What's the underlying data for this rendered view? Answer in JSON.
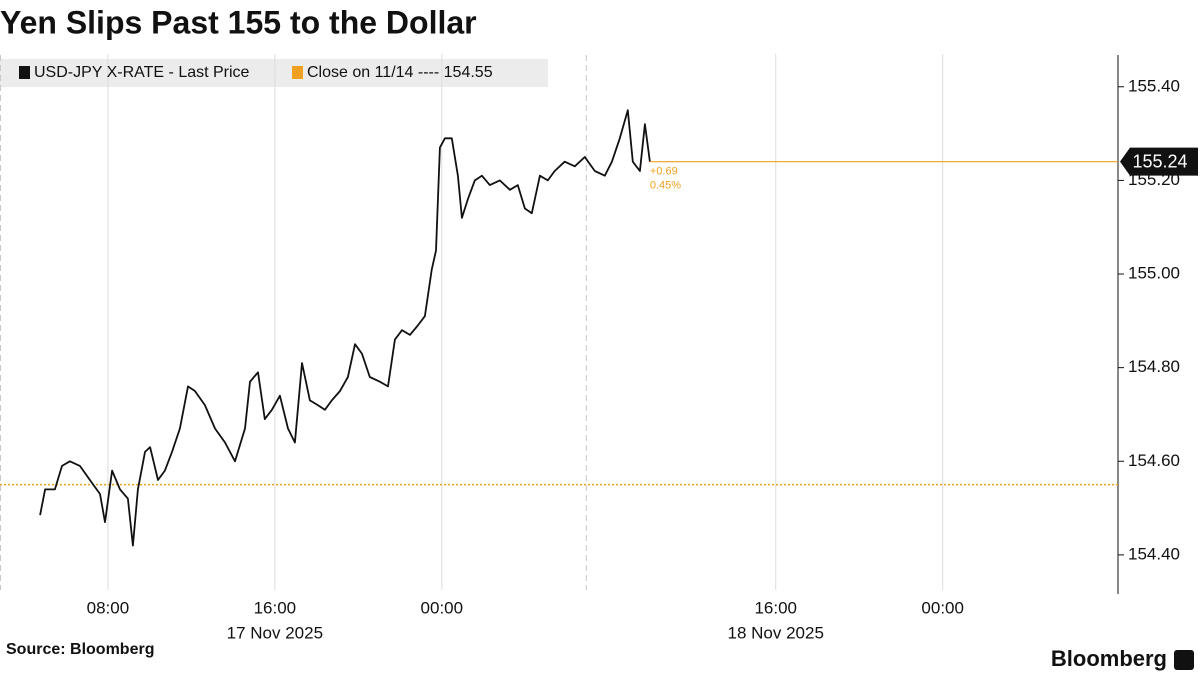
{
  "chart_data": {
    "type": "line",
    "title": "Yen Slips Past 155 to the Dollar",
    "source": "Source: Bloomberg",
    "brand": "Bloomberg",
    "series": [
      {
        "name": "USD-JPY X-RATE - Last Price",
        "color": "#111111",
        "x": [
          4.75,
          4.99,
          5.46,
          5.8,
          6.18,
          6.66,
          7.14,
          7.62,
          7.86,
          8.2,
          8.58,
          8.96,
          9.2,
          9.44,
          9.78,
          10.02,
          10.4,
          10.73,
          11.07,
          11.45,
          11.84,
          12.17,
          12.65,
          13.13,
          13.61,
          14.09,
          14.57,
          14.81,
          15.19,
          15.52,
          15.86,
          16.24,
          16.63,
          16.96,
          17.3,
          17.68,
          18.06,
          18.4,
          18.73,
          19.12,
          19.5,
          19.84,
          20.17,
          20.55,
          21.03,
          21.42,
          21.75,
          22.09,
          22.47,
          22.85,
          23.19,
          23.52,
          23.72,
          23.91,
          24.15,
          24.48,
          24.77,
          24.96,
          25.25,
          25.58,
          25.92,
          26.3,
          26.78,
          27.26,
          27.64,
          27.98,
          28.31,
          28.7,
          29.08,
          29.41,
          29.89,
          30.37,
          30.85,
          31.33,
          31.81,
          32.15,
          32.53,
          32.91,
          33.15,
          33.49,
          33.73,
          33.97
        ],
        "values": [
          154.485,
          154.54,
          154.54,
          154.59,
          154.6,
          154.59,
          154.56,
          154.53,
          154.47,
          154.58,
          154.54,
          154.52,
          154.42,
          154.54,
          154.62,
          154.63,
          154.56,
          154.58,
          154.62,
          154.67,
          154.76,
          154.75,
          154.72,
          154.67,
          154.64,
          154.6,
          154.67,
          154.77,
          154.79,
          154.69,
          154.71,
          154.74,
          154.67,
          154.64,
          154.81,
          154.73,
          154.72,
          154.71,
          154.73,
          154.75,
          154.78,
          154.85,
          154.83,
          154.78,
          154.77,
          154.76,
          154.86,
          154.88,
          154.87,
          154.89,
          154.91,
          155.01,
          155.05,
          155.27,
          155.29,
          155.29,
          155.21,
          155.12,
          155.16,
          155.2,
          155.21,
          155.19,
          155.2,
          155.18,
          155.19,
          155.14,
          155.13,
          155.21,
          155.2,
          155.22,
          155.24,
          155.23,
          155.25,
          155.22,
          155.21,
          155.24,
          155.29,
          155.35,
          155.24,
          155.22,
          155.32,
          155.24
        ]
      }
    ],
    "reference": {
      "name": "Close on 11/14 ---- 154.55",
      "value": 154.55,
      "color": "#f0a020"
    },
    "last_price": 155.24,
    "change": "+0.69",
    "change_pct": "0.45%",
    "session_breaks": [
      2.83,
      30.9
    ],
    "xlim": [
      2.83,
      56.4
    ],
    "xticks": [
      {
        "value": 8,
        "label": "08:00"
      },
      {
        "value": 16,
        "label": "16:00"
      },
      {
        "value": 24,
        "label": "00:00"
      },
      {
        "value": 40,
        "label": "16:00"
      },
      {
        "value": 48,
        "label": "00:00"
      }
    ],
    "date_labels": [
      {
        "value": 16,
        "label": "17 Nov 2025"
      },
      {
        "value": 40,
        "label": "18 Nov 2025"
      }
    ],
    "ylim": [
      154.325,
      155.47
    ],
    "yticks": [
      {
        "value": 154.4,
        "label": "154.40"
      },
      {
        "value": 154.6,
        "label": "154.60"
      },
      {
        "value": 154.8,
        "label": "154.80"
      },
      {
        "value": 155.0,
        "label": "155.00"
      },
      {
        "value": 155.2,
        "label": "155.20"
      },
      {
        "value": 155.4,
        "label": "155.40"
      }
    ],
    "grid": true
  }
}
